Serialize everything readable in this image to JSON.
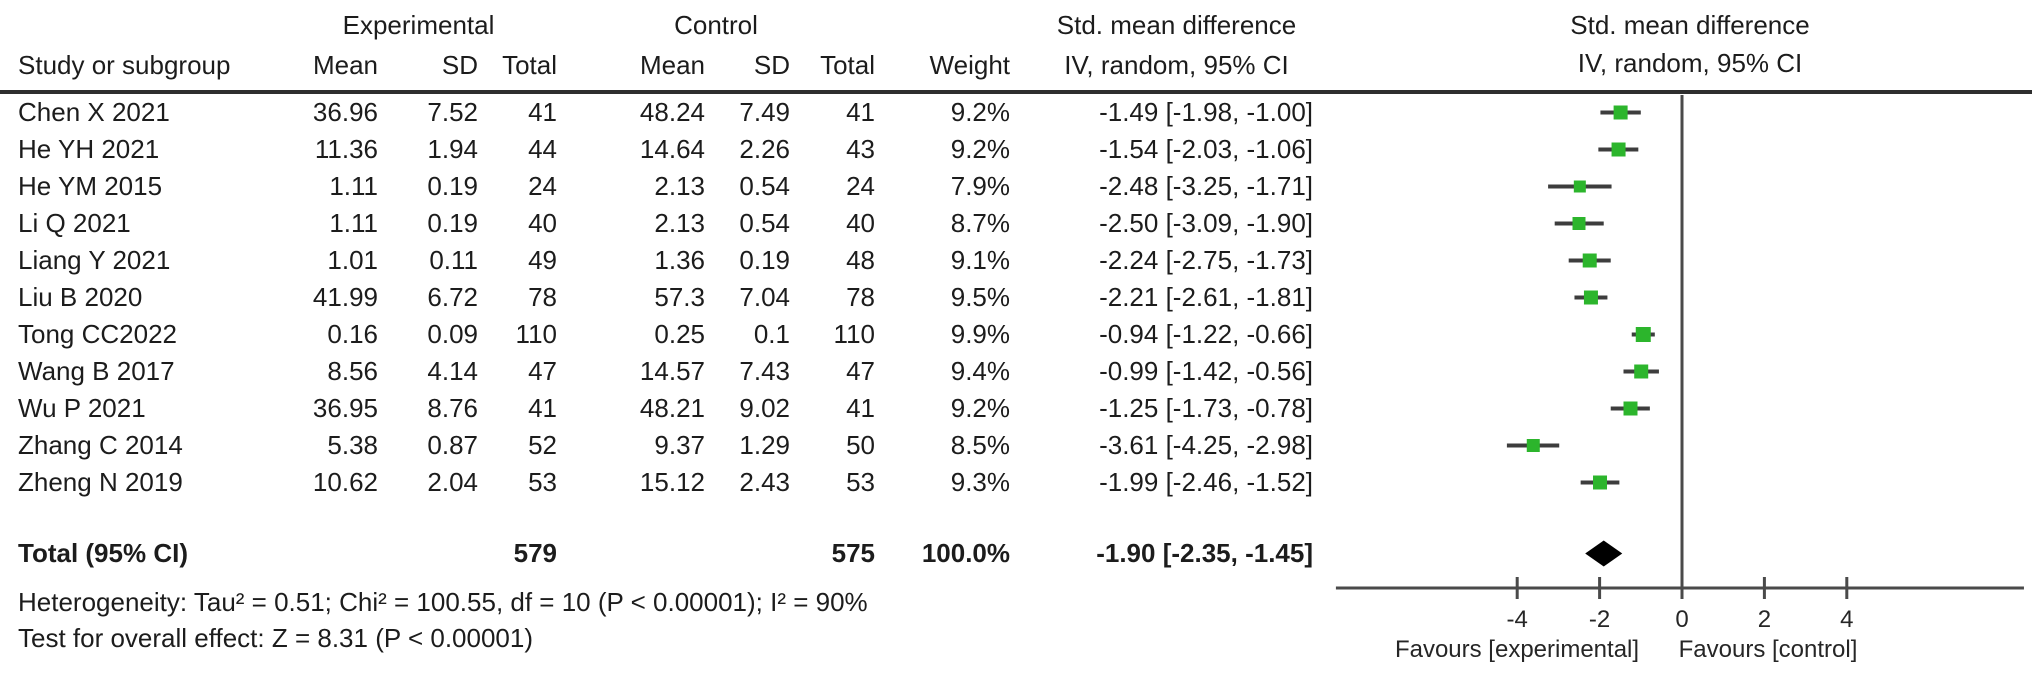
{
  "header": {
    "col_study": "Study or subgroup",
    "group_experimental": "Experimental",
    "group_control": "Control",
    "col_mean": "Mean",
    "col_sd": "SD",
    "col_total": "Total",
    "col_weight": "Weight",
    "effect_line1": "Std. mean difference",
    "effect_line2": "IV, random, 95% CI",
    "plot_line1": "Std. mean difference",
    "plot_line2": "IV, random, 95% CI"
  },
  "chart_data": {
    "type": "forest",
    "effect_measure": "Std. mean difference",
    "method": "IV, random, 95% CI",
    "studies": [
      {
        "name": "Chen X 2021",
        "exp": {
          "mean": "36.96",
          "sd": "7.52",
          "total": "41"
        },
        "ctl": {
          "mean": "48.24",
          "sd": "7.49",
          "total": "41"
        },
        "weight": "9.2%",
        "weight_pct": 9.2,
        "ci_text": "-1.49 [-1.98, -1.00]",
        "est": -1.49,
        "lo": -1.98,
        "hi": -1.0
      },
      {
        "name": "He YH 2021",
        "exp": {
          "mean": "11.36",
          "sd": "1.94",
          "total": "44"
        },
        "ctl": {
          "mean": "14.64",
          "sd": "2.26",
          "total": "43"
        },
        "weight": "9.2%",
        "weight_pct": 9.2,
        "ci_text": "-1.54 [-2.03, -1.06]",
        "est": -1.54,
        "lo": -2.03,
        "hi": -1.06
      },
      {
        "name": "He YM 2015",
        "exp": {
          "mean": "1.11",
          "sd": "0.19",
          "total": "24"
        },
        "ctl": {
          "mean": "2.13",
          "sd": "0.54",
          "total": "24"
        },
        "weight": "7.9%",
        "weight_pct": 7.9,
        "ci_text": "-2.48 [-3.25, -1.71]",
        "est": -2.48,
        "lo": -3.25,
        "hi": -1.71
      },
      {
        "name": "Li Q 2021",
        "exp": {
          "mean": "1.11",
          "sd": "0.19",
          "total": "40"
        },
        "ctl": {
          "mean": "2.13",
          "sd": "0.54",
          "total": "40"
        },
        "weight": "8.7%",
        "weight_pct": 8.7,
        "ci_text": "-2.50 [-3.09, -1.90]",
        "est": -2.5,
        "lo": -3.09,
        "hi": -1.9
      },
      {
        "name": "Liang Y 2021",
        "exp": {
          "mean": "1.01",
          "sd": "0.11",
          "total": "49"
        },
        "ctl": {
          "mean": "1.36",
          "sd": "0.19",
          "total": "48"
        },
        "weight": "9.1%",
        "weight_pct": 9.1,
        "ci_text": "-2.24 [-2.75, -1.73]",
        "est": -2.24,
        "lo": -2.75,
        "hi": -1.73
      },
      {
        "name": "Liu B 2020",
        "exp": {
          "mean": "41.99",
          "sd": "6.72",
          "total": "78"
        },
        "ctl": {
          "mean": "57.3",
          "sd": "7.04",
          "total": "78"
        },
        "weight": "9.5%",
        "weight_pct": 9.5,
        "ci_text": "-2.21 [-2.61, -1.81]",
        "est": -2.21,
        "lo": -2.61,
        "hi": -1.81
      },
      {
        "name": "Tong CC2022",
        "exp": {
          "mean": "0.16",
          "sd": "0.09",
          "total": "110"
        },
        "ctl": {
          "mean": "0.25",
          "sd": "0.1",
          "total": "110"
        },
        "weight": "9.9%",
        "weight_pct": 9.9,
        "ci_text": "-0.94 [-1.22, -0.66]",
        "est": -0.94,
        "lo": -1.22,
        "hi": -0.66
      },
      {
        "name": "Wang B 2017",
        "exp": {
          "mean": "8.56",
          "sd": "4.14",
          "total": "47"
        },
        "ctl": {
          "mean": "14.57",
          "sd": "7.43",
          "total": "47"
        },
        "weight": "9.4%",
        "weight_pct": 9.4,
        "ci_text": "-0.99 [-1.42, -0.56]",
        "est": -0.99,
        "lo": -1.42,
        "hi": -0.56
      },
      {
        "name": "Wu P 2021",
        "exp": {
          "mean": "36.95",
          "sd": "8.76",
          "total": "41"
        },
        "ctl": {
          "mean": "48.21",
          "sd": "9.02",
          "total": "41"
        },
        "weight": "9.2%",
        "weight_pct": 9.2,
        "ci_text": "-1.25 [-1.73, -0.78]",
        "est": -1.25,
        "lo": -1.73,
        "hi": -0.78
      },
      {
        "name": "Zhang C 2014",
        "exp": {
          "mean": "5.38",
          "sd": "0.87",
          "total": "52"
        },
        "ctl": {
          "mean": "9.37",
          "sd": "1.29",
          "total": "50"
        },
        "weight": "8.5%",
        "weight_pct": 8.5,
        "ci_text": "-3.61 [-4.25, -2.98]",
        "est": -3.61,
        "lo": -4.25,
        "hi": -2.98
      },
      {
        "name": "Zheng N 2019",
        "exp": {
          "mean": "10.62",
          "sd": "2.04",
          "total": "53"
        },
        "ctl": {
          "mean": "15.12",
          "sd": "2.43",
          "total": "53"
        },
        "weight": "9.3%",
        "weight_pct": 9.3,
        "ci_text": "-1.99 [-2.46, -1.52]",
        "est": -1.99,
        "lo": -2.46,
        "hi": -1.52
      }
    ],
    "total": {
      "label": "Total (95% CI)",
      "exp_total": "579",
      "ctl_total": "575",
      "weight": "100.0%",
      "ci_text": "-1.90 [-2.35, -1.45]",
      "est": -1.9,
      "lo": -2.35,
      "hi": -1.45
    },
    "axis": {
      "ticks": [
        -4,
        -2,
        0,
        2,
        4
      ],
      "xlim": [
        -8.4,
        8.3
      ],
      "zero_line": 0
    },
    "favours_left": "Favours [experimental]",
    "favours_right": "Favours [control]",
    "colors": {
      "marker": "#2cb52c",
      "ci_line": "#3d3d3d",
      "axis": "#4a4a4a",
      "diamond": "#000000"
    }
  },
  "footer": {
    "heterogeneity": "Heterogeneity: Tau² = 0.51; Chi² = 100.55, df = 10 (P < 0.00001); I² = 90%",
    "overall_effect": "Test for overall effect: Z = 8.31 (P < 0.00001)"
  }
}
